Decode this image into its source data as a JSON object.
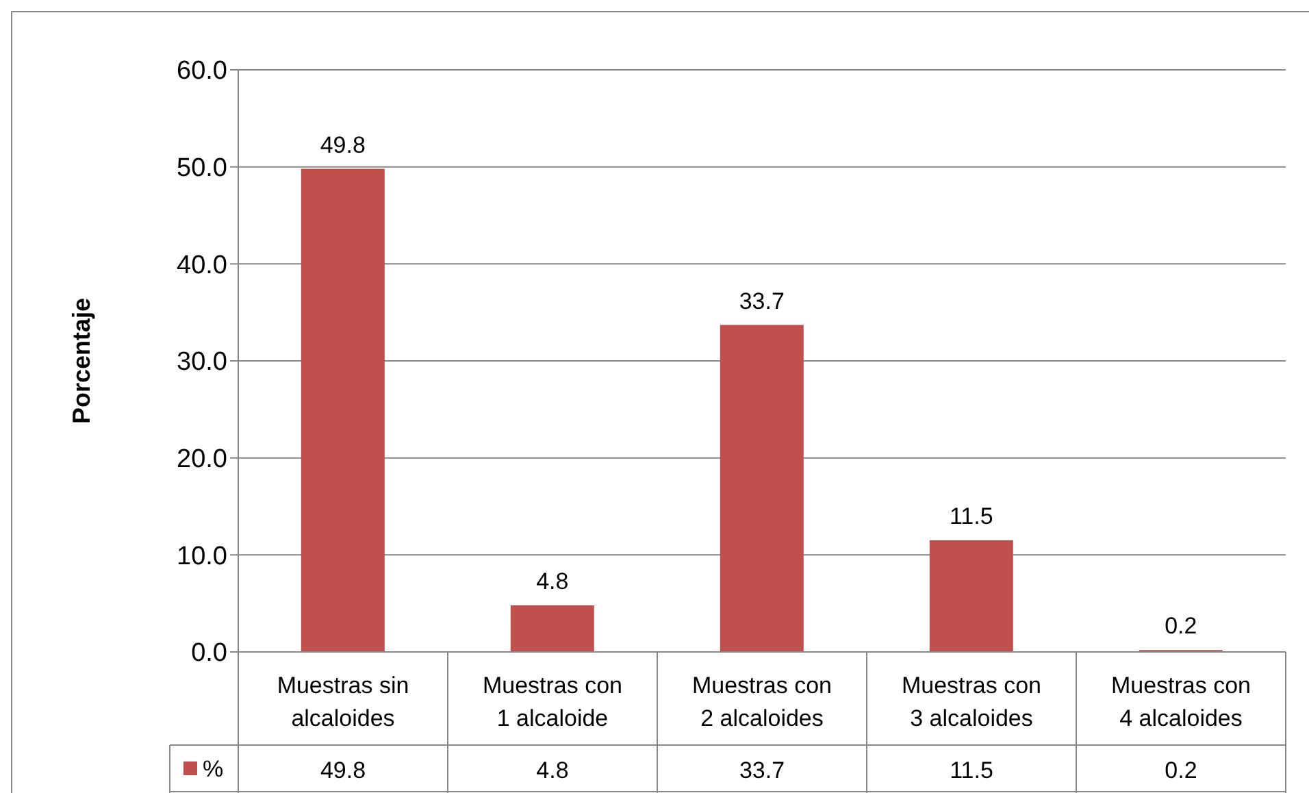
{
  "chart_data": {
    "type": "bar",
    "ylabel": "Porcentaje",
    "categories": [
      "Muestras sin alcaloides",
      "Muestras con 1 alcaloide",
      "Muestras con 2 alcaloides",
      "Muestras con 3 alcaloides",
      "Muestras con 4 alcaloides"
    ],
    "series": [
      {
        "name": "%",
        "color": "#c0504d",
        "values": [
          49.8,
          4.8,
          33.7,
          11.5,
          0.2
        ],
        "value_labels": [
          "49.8",
          "4.8",
          "33.7",
          "11.5",
          "0.2"
        ]
      }
    ],
    "ylim": [
      0,
      60
    ],
    "yticks": [
      {
        "value": 0,
        "label": "0.0"
      },
      {
        "value": 10,
        "label": "10.0"
      },
      {
        "value": 20,
        "label": "20.0"
      },
      {
        "value": 30,
        "label": "30.0"
      },
      {
        "value": 40,
        "label": "40.0"
      },
      {
        "value": 50,
        "label": "50.0"
      },
      {
        "value": 60,
        "label": "60.0"
      }
    ],
    "annotations": [
      "49.8",
      "4.8",
      "33.7",
      "11.5",
      "0.2"
    ],
    "grid": "y",
    "legend": "bottom"
  }
}
